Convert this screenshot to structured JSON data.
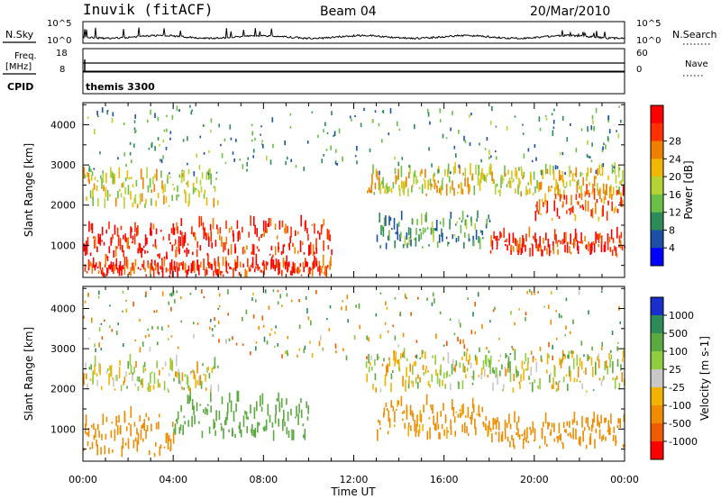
{
  "header": {
    "station": "Inuvik (fitACF)",
    "beam": "Beam 04",
    "date": "20/Mar/2010"
  },
  "noise_panel": {
    "left_label": "N.Sky",
    "right_label": "N.Search",
    "left_ticks": [
      "10^5",
      "10^0"
    ],
    "right_ticks": [
      "10^5",
      "10^0"
    ]
  },
  "freq_panel": {
    "left_label_1": "Freq.",
    "left_label_2": "[MHz]",
    "right_label": "Nave",
    "left_ticks": [
      "18",
      "8"
    ],
    "right_ticks": [
      "60",
      "0"
    ]
  },
  "cpid_panel": {
    "label": "CPID",
    "program": "themis 3300"
  },
  "colors": {
    "power": [
      "#0000ff",
      "#1c4fa6",
      "#2e8b57",
      "#6abf47",
      "#b5d334",
      "#f0b800",
      "#f08000",
      "#ff3000",
      "#ff0000"
    ],
    "velocity": [
      "#1a2ecc",
      "#2e8b57",
      "#5aaa3f",
      "#90cc40",
      "#c8c8c8",
      "#f2b400",
      "#f08c00",
      "#f05a00",
      "#ff0000"
    ]
  },
  "chart_data": [
    {
      "type": "heatmap",
      "panel": "power",
      "ylabel": "Slant Range [km]",
      "yticks": [
        "1000",
        "2000",
        "3000",
        "4000"
      ],
      "ylim": [
        200,
        4550
      ],
      "colorbar_label": "Power [dB]",
      "colorbar_ticks": [
        "4",
        "8",
        "12",
        "16",
        "20",
        "24",
        "28"
      ],
      "clim": [
        0,
        32
      ],
      "regions_by_hour": [
        {
          "x": [
            0,
            4.5
          ],
          "y": [
            600,
            1400
          ],
          "value": 30
        },
        {
          "x": [
            0,
            11
          ],
          "y": [
            200,
            500
          ],
          "value": 28
        },
        {
          "x": [
            4,
            11
          ],
          "y": [
            700,
            1500
          ],
          "value": 28
        },
        {
          "x": [
            0,
            6
          ],
          "y": [
            1900,
            2700
          ],
          "value": 17
        },
        {
          "x": [
            12.5,
            24
          ],
          "y": [
            2200,
            2800
          ],
          "value": 18
        },
        {
          "x": [
            13,
            18
          ],
          "y": [
            900,
            1700
          ],
          "value": 10
        },
        {
          "x": [
            18,
            24
          ],
          "y": [
            700,
            1200
          ],
          "value": 28
        },
        {
          "x": [
            20,
            24
          ],
          "y": [
            1600,
            2300
          ],
          "value": 24
        }
      ]
    },
    {
      "type": "heatmap",
      "panel": "velocity",
      "ylabel": "Slant Range [km]",
      "yticks": [
        "1000",
        "2000",
        "3000",
        "4000"
      ],
      "ylim": [
        200,
        4550
      ],
      "xlabel": "Time UT",
      "xticks": [
        "00:00",
        "04:00",
        "08:00",
        "12:00",
        "16:00",
        "20:00",
        "00:00"
      ],
      "xlim": [
        0,
        24
      ],
      "colorbar_label": "Velocity [m s-1]",
      "colorbar_ticks": [
        "1000",
        "500",
        "100",
        "25",
        "-25",
        "-100",
        "-500",
        "-1000"
      ],
      "regions_by_hour": [
        {
          "x": [
            0,
            4
          ],
          "y": [
            300,
            1300
          ],
          "value": -300
        },
        {
          "x": [
            4,
            10
          ],
          "y": [
            700,
            1700
          ],
          "value": 300
        },
        {
          "x": [
            0,
            6
          ],
          "y": [
            1900,
            2600
          ],
          "value": 0
        },
        {
          "x": [
            12.5,
            24
          ],
          "y": [
            1900,
            2800
          ],
          "value": 0
        },
        {
          "x": [
            13,
            18
          ],
          "y": [
            700,
            1600
          ],
          "value": -200
        },
        {
          "x": [
            18,
            24
          ],
          "y": [
            500,
            1200
          ],
          "value": -300
        }
      ]
    }
  ]
}
